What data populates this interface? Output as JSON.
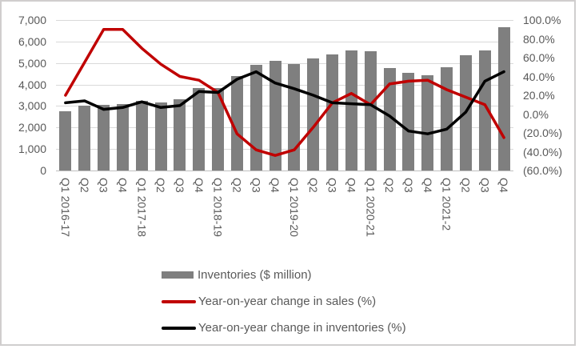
{
  "chart_data": {
    "type": "combo-bar-line",
    "title": "",
    "categories": [
      "Q1 2016-17",
      "Q2",
      "Q3",
      "Q4",
      "Q1 2017-18",
      "Q2",
      "Q3",
      "Q4",
      "Q1 2018-19",
      "Q2",
      "Q3",
      "Q4",
      "Q1 2019-20",
      "Q2",
      "Q3",
      "Q4",
      "Q1 2020-21",
      "Q2",
      "Q3",
      "Q4",
      "Q1 2021-2",
      "Q2",
      "Q3",
      "Q4"
    ],
    "series": [
      {
        "name": "Inventories ($ million)",
        "type": "bar",
        "axis": "left",
        "color": "#7f7f7f",
        "values": [
          2750,
          3000,
          3050,
          3100,
          3250,
          3150,
          3300,
          3850,
          3850,
          4400,
          4900,
          5100,
          4950,
          5200,
          5400,
          5600,
          5550,
          4750,
          4550,
          4450,
          4800,
          5350,
          5600,
          6650
        ]
      },
      {
        "name": "Year-on-year change in sales (%)",
        "type": "line",
        "axis": "right",
        "color": "#c00000",
        "values": [
          20,
          55,
          90,
          90,
          70,
          53,
          40,
          36,
          23,
          -21,
          -38,
          -44,
          -38,
          -14,
          12,
          22,
          10,
          32,
          35,
          36,
          26,
          18,
          10,
          -25
        ]
      },
      {
        "name": "Year-on-year change in inventories (%)",
        "type": "line",
        "axis": "right",
        "color": "#000000",
        "values": [
          12,
          14,
          5,
          7,
          13,
          7,
          9,
          24,
          23,
          37,
          45,
          33,
          27,
          20,
          12,
          11,
          10,
          -2,
          -18,
          -21,
          -16,
          2,
          35,
          45
        ]
      }
    ],
    "left_axis": {
      "min": 0,
      "max": 7000,
      "step": 1000,
      "tick_labels": [
        "7,000",
        "6,000",
        "5,000",
        "4,000",
        "3,000",
        "2,000",
        "1,000",
        "0"
      ]
    },
    "right_axis": {
      "min": -60,
      "max": 100,
      "step": 20,
      "tick_labels": [
        "100.0%",
        "80.0%",
        "60.0%",
        "40.0%",
        "20.0%",
        "0.0%",
        "(20.0%)",
        "(40.0%)",
        "(60.0%)"
      ]
    },
    "grid": true,
    "legend_position": "bottom-left"
  },
  "colors": {
    "bar": "#7f7f7f",
    "sales_line": "#c00000",
    "inventories_line": "#000000",
    "gridline": "#d9d9d9",
    "axis_text": "#595959",
    "canvas_border": "#d0cece",
    "background": "#ffffff"
  }
}
